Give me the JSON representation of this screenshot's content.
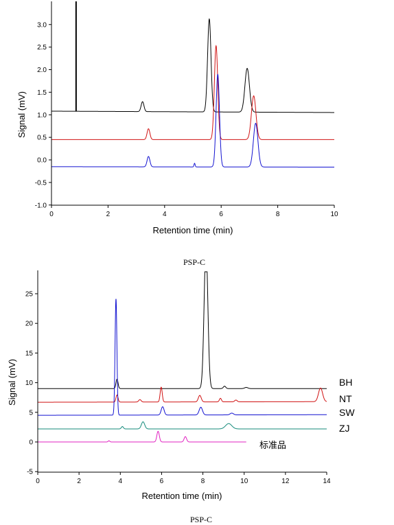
{
  "chart_data": [
    {
      "type": "line",
      "xlabel": "Retention time (min)",
      "ylabel": "Signal (mV)",
      "caption": "PSP-C",
      "xlim": [
        0,
        10
      ],
      "ylim": [
        -1.0,
        3.0
      ],
      "xticks": [
        "0",
        "2",
        "4",
        "6",
        "8",
        "10"
      ],
      "yticks": [
        "-1.0",
        "-0.5",
        "0.0",
        "0.5",
        "1.0",
        "1.5",
        "2.0",
        "2.5",
        "3.0"
      ],
      "series": [
        {
          "color": "#000000",
          "baseline_start": 1.08,
          "baseline_end": 1.05,
          "spike": {
            "x": 0.87,
            "top": 3.5
          },
          "peaks": [
            {
              "x": 3.22,
              "height": 0.22,
              "width": 0.05
            },
            {
              "x": 5.58,
              "height": 2.06,
              "width": 0.06
            },
            {
              "x": 6.92,
              "height": 0.97,
              "width": 0.08
            }
          ]
        },
        {
          "color": "#d01010",
          "baseline_start": 0.45,
          "baseline_end": 0.45,
          "peaks": [
            {
              "x": 3.43,
              "height": 0.24,
              "width": 0.05
            },
            {
              "x": 5.82,
              "height": 2.08,
              "width": 0.06
            },
            {
              "x": 7.15,
              "height": 0.97,
              "width": 0.08
            }
          ]
        },
        {
          "color": "#1010d0",
          "baseline_start": -0.15,
          "baseline_end": -0.16,
          "peaks": [
            {
              "x": 3.43,
              "height": 0.23,
              "width": 0.05
            },
            {
              "x": 5.06,
              "height": 0.08,
              "width": 0.02
            },
            {
              "x": 5.88,
              "height": 2.05,
              "width": 0.06
            },
            {
              "x": 7.22,
              "height": 0.97,
              "width": 0.08
            }
          ]
        }
      ]
    },
    {
      "type": "line",
      "xlabel": "Retention time (min)",
      "ylabel": "Signal (mV)",
      "caption": "PSP-C",
      "xlim": [
        0,
        14
      ],
      "ylim": [
        -5,
        29
      ],
      "xticks": [
        "0",
        "2",
        "4",
        "6",
        "8",
        "10",
        "12",
        "14"
      ],
      "yticks": [
        "-5",
        "0",
        "5",
        "10",
        "15",
        "20",
        "25"
      ],
      "series": [
        {
          "name": "BH",
          "color": "#000000",
          "baseline_start": 9.0,
          "baseline_end": 9.0,
          "x_end": 14,
          "peaks": [
            {
              "x": 3.84,
              "height": 1.6,
              "width": 0.05
            },
            {
              "x": 8.15,
              "height": 24.0,
              "width": 0.09
            },
            {
              "x": 9.05,
              "height": 0.4,
              "width": 0.06
            },
            {
              "x": 10.1,
              "height": 0.2,
              "width": 0.08
            }
          ]
        },
        {
          "name": "NT",
          "color": "#d01010",
          "baseline_start": 6.7,
          "baseline_end": 6.8,
          "x_end": 14,
          "peaks": [
            {
              "x": 3.84,
              "height": 1.2,
              "width": 0.05
            },
            {
              "x": 4.95,
              "height": 0.4,
              "width": 0.06
            },
            {
              "x": 5.98,
              "height": 2.5,
              "width": 0.05
            },
            {
              "x": 7.85,
              "height": 1.1,
              "width": 0.07
            },
            {
              "x": 8.85,
              "height": 0.6,
              "width": 0.05
            },
            {
              "x": 9.6,
              "height": 0.3,
              "width": 0.06
            },
            {
              "x": 13.7,
              "height": 2.3,
              "width": 0.1
            }
          ]
        },
        {
          "name": "SW",
          "color": "#1010d0",
          "baseline_start": 4.5,
          "baseline_end": 4.6,
          "x_end": 14,
          "peaks": [
            {
              "x": 3.79,
              "height": 19.6,
              "width": 0.045
            },
            {
              "x": 6.05,
              "height": 1.4,
              "width": 0.07
            },
            {
              "x": 7.9,
              "height": 1.3,
              "width": 0.08
            },
            {
              "x": 9.4,
              "height": 0.3,
              "width": 0.08
            }
          ]
        },
        {
          "name": "ZJ",
          "color": "#138a7a",
          "baseline_start": 2.2,
          "baseline_end": 2.2,
          "x_end": 14,
          "peaks": [
            {
              "x": 4.1,
              "height": 0.4,
              "width": 0.05
            },
            {
              "x": 5.1,
              "height": 1.2,
              "width": 0.08
            },
            {
              "x": 9.25,
              "height": 0.9,
              "width": 0.15
            }
          ]
        },
        {
          "name": "标准品",
          "color": "#e020c0",
          "baseline_start": 0.0,
          "baseline_end": 0.0,
          "x_end": 10.1,
          "peaks": [
            {
              "x": 3.45,
              "height": 0.2,
              "width": 0.04
            },
            {
              "x": 5.83,
              "height": 1.8,
              "width": 0.06
            },
            {
              "x": 7.15,
              "height": 0.9,
              "width": 0.06
            }
          ]
        }
      ]
    }
  ]
}
